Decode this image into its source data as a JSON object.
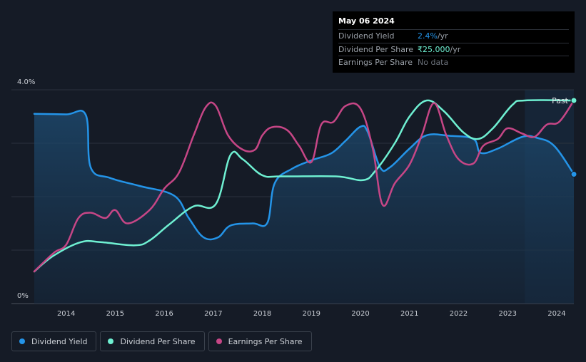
{
  "chart_data": {
    "type": "line",
    "title": "",
    "xlabel": "",
    "ylabel": "",
    "ylim": [
      0,
      4
    ],
    "xlim": [
      2013.35,
      2024.35
    ],
    "y_tick_labels": [
      "4.0%",
      "0%"
    ],
    "x_ticks": [
      2014,
      2015,
      2016,
      2017,
      2018,
      2019,
      2020,
      2021,
      2022,
      2023,
      2024
    ],
    "past_label": "Past",
    "forecast_start": 2023.35,
    "series": [
      {
        "name": "Dividend Yield",
        "color": "#2494e8",
        "filled": true,
        "points": [
          [
            2013.35,
            3.55
          ],
          [
            2014.0,
            3.54
          ],
          [
            2014.4,
            3.53
          ],
          [
            2014.5,
            2.55
          ],
          [
            2014.9,
            2.35
          ],
          [
            2015.5,
            2.2
          ],
          [
            2016.2,
            2.02
          ],
          [
            2016.5,
            1.6
          ],
          [
            2016.8,
            1.24
          ],
          [
            2017.1,
            1.24
          ],
          [
            2017.35,
            1.46
          ],
          [
            2017.8,
            1.5
          ],
          [
            2018.1,
            1.51
          ],
          [
            2018.25,
            2.25
          ],
          [
            2018.6,
            2.52
          ],
          [
            2019.0,
            2.68
          ],
          [
            2019.4,
            2.81
          ],
          [
            2019.7,
            3.05
          ],
          [
            2020.0,
            3.31
          ],
          [
            2020.15,
            3.21
          ],
          [
            2020.4,
            2.55
          ],
          [
            2020.6,
            2.55
          ],
          [
            2021.0,
            2.9
          ],
          [
            2021.35,
            3.15
          ],
          [
            2021.8,
            3.14
          ],
          [
            2022.3,
            3.08
          ],
          [
            2022.45,
            2.82
          ],
          [
            2022.8,
            2.9
          ],
          [
            2023.3,
            3.12
          ],
          [
            2023.6,
            3.1
          ],
          [
            2023.95,
            2.95
          ],
          [
            2024.35,
            2.42
          ]
        ]
      },
      {
        "name": "Dividend Per Share",
        "color": "#6ff0d2",
        "filled": false,
        "points": [
          [
            2013.35,
            0.6
          ],
          [
            2013.75,
            0.9
          ],
          [
            2014.3,
            1.15
          ],
          [
            2014.7,
            1.15
          ],
          [
            2015.4,
            1.09
          ],
          [
            2015.7,
            1.18
          ],
          [
            2016.1,
            1.48
          ],
          [
            2016.6,
            1.82
          ],
          [
            2017.05,
            1.86
          ],
          [
            2017.35,
            2.78
          ],
          [
            2017.6,
            2.7
          ],
          [
            2018.0,
            2.4
          ],
          [
            2018.4,
            2.38
          ],
          [
            2019.5,
            2.38
          ],
          [
            2020.05,
            2.31
          ],
          [
            2020.3,
            2.48
          ],
          [
            2020.7,
            3.0
          ],
          [
            2021.0,
            3.5
          ],
          [
            2021.35,
            3.8
          ],
          [
            2021.7,
            3.6
          ],
          [
            2022.1,
            3.2
          ],
          [
            2022.4,
            3.08
          ],
          [
            2022.7,
            3.28
          ],
          [
            2023.1,
            3.72
          ],
          [
            2023.35,
            3.8
          ],
          [
            2024.35,
            3.8
          ]
        ]
      },
      {
        "name": "Earnings Per Share",
        "color": "#c64686",
        "filled": false,
        "points": [
          [
            2013.35,
            0.6
          ],
          [
            2013.75,
            0.95
          ],
          [
            2014.0,
            1.1
          ],
          [
            2014.25,
            1.6
          ],
          [
            2014.5,
            1.7
          ],
          [
            2014.8,
            1.6
          ],
          [
            2015.0,
            1.75
          ],
          [
            2015.25,
            1.5
          ],
          [
            2015.7,
            1.75
          ],
          [
            2016.0,
            2.15
          ],
          [
            2016.3,
            2.45
          ],
          [
            2016.6,
            3.15
          ],
          [
            2016.85,
            3.68
          ],
          [
            2017.05,
            3.7
          ],
          [
            2017.3,
            3.15
          ],
          [
            2017.6,
            2.88
          ],
          [
            2017.85,
            2.88
          ],
          [
            2018.0,
            3.15
          ],
          [
            2018.2,
            3.3
          ],
          [
            2018.5,
            3.25
          ],
          [
            2018.75,
            2.95
          ],
          [
            2019.0,
            2.65
          ],
          [
            2019.2,
            3.35
          ],
          [
            2019.45,
            3.4
          ],
          [
            2019.7,
            3.7
          ],
          [
            2020.0,
            3.65
          ],
          [
            2020.25,
            2.9
          ],
          [
            2020.45,
            1.85
          ],
          [
            2020.7,
            2.25
          ],
          [
            2021.0,
            2.6
          ],
          [
            2021.25,
            3.15
          ],
          [
            2021.5,
            3.75
          ],
          [
            2021.75,
            3.15
          ],
          [
            2022.0,
            2.7
          ],
          [
            2022.3,
            2.62
          ],
          [
            2022.5,
            2.95
          ],
          [
            2022.8,
            3.08
          ],
          [
            2023.0,
            3.28
          ],
          [
            2023.3,
            3.18
          ],
          [
            2023.55,
            3.12
          ],
          [
            2023.8,
            3.35
          ],
          [
            2024.05,
            3.4
          ],
          [
            2024.35,
            3.8
          ]
        ]
      }
    ]
  },
  "tooltip": {
    "date": "May 06 2024",
    "rows": [
      {
        "label": "Dividend Yield",
        "value": "2.4%",
        "unit": " /yr"
      },
      {
        "label": "Dividend Per Share",
        "value": "₹25.000",
        "unit": " /yr"
      },
      {
        "label": "Earnings Per Share",
        "value": "No data",
        "unit": ""
      }
    ]
  },
  "legend": [
    {
      "label": "Dividend Yield",
      "color": "#2494e8"
    },
    {
      "label": "Dividend Per Share",
      "color": "#6ff0d2"
    },
    {
      "label": "Earnings Per Share",
      "color": "#c64686"
    }
  ]
}
